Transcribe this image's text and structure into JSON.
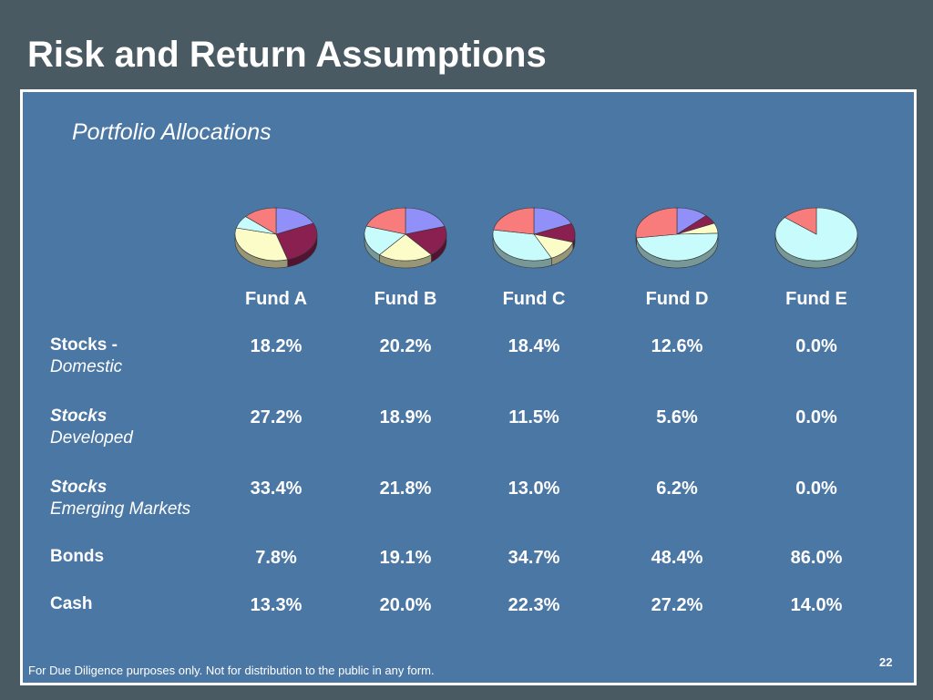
{
  "title": "Risk and Return Assumptions",
  "subtitle": "Portfolio Allocations",
  "colors": {
    "stocks_domestic": "#9090f8",
    "stocks_developed": "#8a2050",
    "stocks_emerging": "#fcfcc8",
    "bonds": "#c8fcfc",
    "cash": "#f87c7c"
  },
  "funds": [
    "Fund A",
    "Fund B",
    "Fund C",
    "Fund D",
    "Fund E"
  ],
  "rows": [
    {
      "label1": "Stocks -",
      "label2": "Domestic",
      "values": [
        "18.2%",
        "20.2%",
        "18.4%",
        "12.6%",
        "0.0%"
      ]
    },
    {
      "label1": "Stocks",
      "label2": "Developed",
      "values": [
        "27.2%",
        "18.9%",
        "11.5%",
        "5.6%",
        "0.0%"
      ]
    },
    {
      "label1": "Stocks",
      "label2": "Emerging Markets",
      "values": [
        "33.4%",
        "21.8%",
        "13.0%",
        "6.2%",
        "0.0%"
      ]
    },
    {
      "label1": "Bonds",
      "label2": "",
      "values": [
        "7.8%",
        "19.1%",
        "34.7%",
        "48.4%",
        "86.0%"
      ]
    },
    {
      "label1": "Cash",
      "label2": "",
      "values": [
        "13.3%",
        "20.0%",
        "22.3%",
        "27.2%",
        "14.0%"
      ]
    }
  ],
  "chart_data": {
    "type": "pie",
    "categories": [
      "Stocks - Domestic",
      "Stocks Developed",
      "Stocks Emerging Markets",
      "Bonds",
      "Cash"
    ],
    "series": [
      {
        "name": "Fund A",
        "values": [
          18.2,
          27.2,
          33.4,
          7.8,
          13.3
        ]
      },
      {
        "name": "Fund B",
        "values": [
          20.2,
          18.9,
          21.8,
          19.1,
          20.0
        ]
      },
      {
        "name": "Fund C",
        "values": [
          18.4,
          11.5,
          13.0,
          34.7,
          22.3
        ]
      },
      {
        "name": "Fund D",
        "values": [
          12.6,
          5.6,
          6.2,
          48.4,
          27.2
        ]
      },
      {
        "name": "Fund E",
        "values": [
          0.0,
          0.0,
          0.0,
          86.0,
          14.0
        ]
      }
    ]
  },
  "footer": "For Due Diligence purposes only. Not for distribution to the public in any form.",
  "page_number": "22"
}
